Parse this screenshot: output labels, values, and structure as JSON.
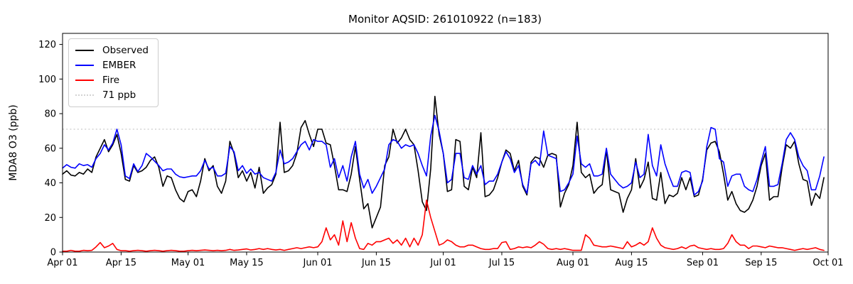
{
  "title": "Monitor AQSID: 261010922 (n=183)",
  "chart_data": {
    "type": "line",
    "title": "Monitor AQSID: 261010922 (n=183)",
    "xlabel": "",
    "ylabel": "MDA8 O3 (ppb)",
    "ylim": [
      0,
      126.4
    ],
    "yticks": [
      0,
      20,
      40,
      60,
      80,
      100,
      120
    ],
    "n_days": 183,
    "grid": false,
    "legend_position": "upper left",
    "xticks": [
      {
        "label": "Apr 01",
        "day": 0
      },
      {
        "label": "Apr 15",
        "day": 14
      },
      {
        "label": "May 01",
        "day": 30
      },
      {
        "label": "May 15",
        "day": 44
      },
      {
        "label": "Jun 01",
        "day": 61
      },
      {
        "label": "Jun 15",
        "day": 75
      },
      {
        "label": "Jul 01",
        "day": 91
      },
      {
        "label": "Jul 15",
        "day": 105
      },
      {
        "label": "Aug 01",
        "day": 122
      },
      {
        "label": "Aug 15",
        "day": 136
      },
      {
        "label": "Sep 01",
        "day": 153
      },
      {
        "label": "Sep 15",
        "day": 167
      },
      {
        "label": "Oct 01",
        "day": 183
      }
    ],
    "reference_line": {
      "label": "71 ppb",
      "value": 71,
      "color": "#d3d3d3"
    },
    "series": [
      {
        "name": "Observed",
        "color": "#000000",
        "values": [
          45,
          47,
          44.5,
          44,
          46,
          45,
          48,
          46,
          55,
          60,
          65,
          58,
          62,
          68,
          57,
          42,
          41,
          50,
          46,
          47,
          49,
          53,
          55,
          49,
          38,
          44,
          43,
          36,
          31,
          29,
          35,
          36,
          32,
          41,
          54,
          47,
          50,
          38,
          34,
          41,
          64,
          57,
          43,
          47,
          41,
          46,
          37,
          49,
          34,
          37,
          39,
          45,
          75,
          46,
          47,
          50,
          57,
          72,
          76,
          68,
          61,
          71,
          71,
          63,
          62,
          50,
          36,
          36,
          35,
          45,
          61,
          42,
          25,
          28,
          14,
          20,
          26,
          50,
          55,
          71,
          63,
          66,
          71,
          65,
          62,
          47,
          29,
          24,
          48,
          90,
          68,
          57,
          35,
          36,
          65,
          64,
          38,
          36,
          49,
          43,
          69,
          32,
          33,
          36,
          43,
          52,
          59,
          57,
          47,
          53,
          38,
          33,
          52,
          55,
          54,
          49,
          56,
          57,
          56,
          26,
          34,
          39,
          50,
          75,
          46,
          43,
          45,
          34,
          37,
          39,
          59,
          36,
          35,
          34,
          23,
          31,
          36,
          54,
          37,
          42,
          52,
          31,
          30,
          46,
          28,
          33,
          32,
          34,
          43,
          36,
          43,
          32,
          33,
          42,
          59,
          63,
          64,
          58,
          45,
          30,
          35,
          28,
          24,
          23,
          25,
          30,
          38,
          50,
          57,
          30,
          32,
          32,
          49,
          62,
          60,
          64,
          51,
          42,
          41,
          27,
          34,
          31,
          43
        ]
      },
      {
        "name": "EMBER",
        "color": "#0000ff",
        "values": [
          48.5,
          50.5,
          49,
          48.5,
          51,
          50,
          50.5,
          49,
          54,
          57,
          62,
          59,
          63,
          71,
          62,
          44,
          42.5,
          51,
          46.5,
          50,
          57,
          55,
          52.5,
          50,
          47,
          48,
          48,
          45,
          43.5,
          43,
          43.5,
          44,
          44,
          47,
          53,
          48,
          49,
          44,
          44,
          45.5,
          61,
          58,
          47,
          50,
          45.5,
          48,
          45,
          46,
          43,
          42,
          41,
          46,
          59,
          51,
          52,
          54,
          58,
          62,
          64,
          59,
          65,
          64,
          64,
          62,
          49,
          54,
          43,
          50,
          41,
          55,
          64,
          45,
          37,
          42,
          34,
          38,
          43,
          48,
          62,
          65,
          64,
          60,
          62,
          61,
          62,
          57,
          50,
          44,
          67,
          79,
          70,
          57,
          40,
          42,
          57,
          57,
          43,
          42,
          50,
          45,
          50,
          39,
          41,
          41,
          45,
          52,
          58,
          54,
          46,
          50,
          39,
          34,
          51,
          53,
          50,
          70,
          56,
          55,
          54,
          35,
          36,
          40,
          45,
          67,
          51,
          49,
          51,
          44,
          44,
          45,
          60,
          45,
          42,
          39,
          37,
          38,
          40,
          52,
          43,
          45,
          68,
          50,
          44,
          62,
          51,
          44,
          38,
          38,
          46,
          47,
          46,
          33,
          35,
          41,
          61,
          72,
          71,
          54,
          52,
          38,
          44,
          45,
          45,
          38,
          36,
          35,
          42,
          52,
          61,
          38,
          38,
          39,
          51,
          65,
          69,
          65,
          55,
          50,
          47,
          36,
          36,
          44,
          55
        ]
      },
      {
        "name": "Fire",
        "color": "#ff0000",
        "values": [
          0.5,
          0.5,
          1,
          0.5,
          0.5,
          1,
          0.8,
          1,
          3,
          5.5,
          2.5,
          3.5,
          5,
          1.5,
          0.8,
          0.8,
          0.5,
          0.8,
          1,
          0.8,
          0.5,
          0.8,
          1,
          0.8,
          0.5,
          0.8,
          1,
          0.8,
          0.5,
          0.5,
          0.8,
          1,
          0.8,
          1,
          1.2,
          1,
          0.8,
          1,
          0.8,
          1,
          1.5,
          1,
          1.2,
          1.5,
          1.8,
          1.2,
          1.5,
          2,
          1.5,
          2,
          1.5,
          1.2,
          1.5,
          1,
          1.5,
          2,
          2.5,
          2,
          2.5,
          3,
          2.5,
          3,
          6,
          14,
          7,
          10,
          4,
          18,
          6,
          17,
          8,
          2,
          1.5,
          5,
          4,
          6,
          6,
          7,
          8,
          5,
          7,
          4,
          8,
          3,
          8,
          4,
          10,
          30,
          20,
          12,
          4,
          5,
          7,
          6,
          4,
          3,
          3,
          4,
          4,
          3,
          2,
          1.5,
          1.5,
          2,
          2,
          5.5,
          6,
          1.5,
          2,
          3,
          2.5,
          3,
          2.5,
          4,
          6,
          4.5,
          2,
          1.5,
          2,
          1.5,
          2,
          1.5,
          1,
          1,
          1,
          10,
          8,
          4,
          3.5,
          3,
          3,
          3.5,
          3,
          2.5,
          2,
          6,
          3,
          4,
          5.5,
          4,
          6,
          14,
          8,
          4,
          2.5,
          2,
          1.5,
          2,
          3,
          2,
          3.5,
          4,
          2.5,
          2,
          1.5,
          2,
          1.5,
          1.5,
          2,
          5,
          10,
          6,
          4,
          4,
          2,
          3.5,
          3.5,
          3,
          2.5,
          3.5,
          3,
          2.5,
          2.5,
          2,
          1.5,
          1,
          1.5,
          2,
          1.5,
          2,
          2.5,
          1.5,
          1
        ]
      }
    ],
    "legend": [
      "Observed",
      "EMBER",
      "Fire",
      "71 ppb"
    ]
  }
}
